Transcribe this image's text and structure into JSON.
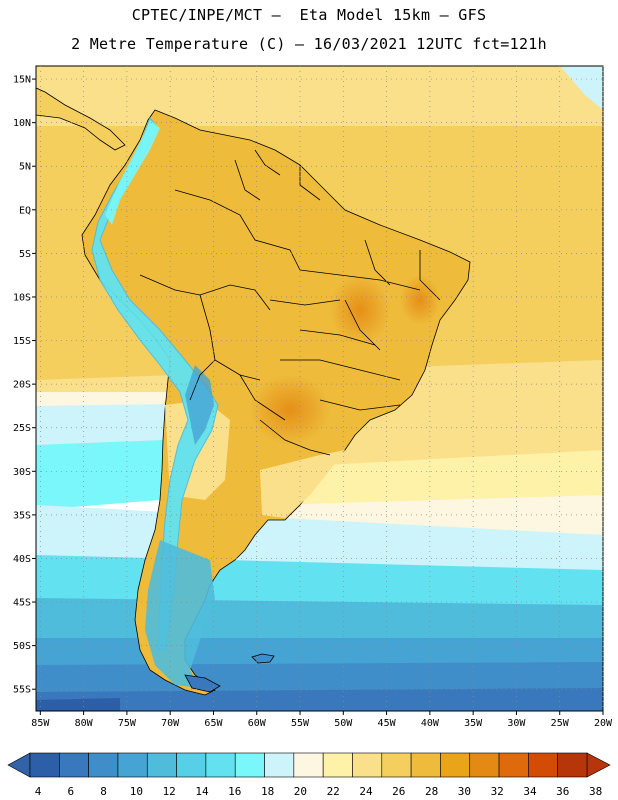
{
  "header": {
    "line1": "CPTEC/INPE/MCT –  Eta Model 15km – GFS",
    "line2": "2 Metre Temperature (C) – 16/03/2021 12UTC fct=121h"
  },
  "axes": {
    "lat_labels": [
      "15N",
      "10N",
      "5N",
      "EQ",
      "5S",
      "10S",
      "15S",
      "20S",
      "25S",
      "30S",
      "35S",
      "40S",
      "45S",
      "50S",
      "55S"
    ],
    "lat_values": [
      15,
      10,
      5,
      0,
      -5,
      -10,
      -15,
      -20,
      -25,
      -30,
      -35,
      -40,
      -45,
      -50,
      -55
    ],
    "lon_labels": [
      "85W",
      "80W",
      "75W",
      "70W",
      "65W",
      "60W",
      "55W",
      "50W",
      "45W",
      "40W",
      "35W",
      "30W",
      "25W",
      "20W"
    ],
    "lon_values": [
      -85,
      -80,
      -75,
      -70,
      -65,
      -60,
      -55,
      -50,
      -45,
      -40,
      -35,
      -30,
      -25,
      -20
    ],
    "lon_range": [
      -85.5,
      -20
    ],
    "lat_range": [
      -57.5,
      16.5
    ]
  },
  "colorbar": {
    "labels": [
      "4",
      "6",
      "8",
      "10",
      "12",
      "14",
      "16",
      "18",
      "20",
      "22",
      "24",
      "26",
      "28",
      "30",
      "32",
      "34",
      "36",
      "38"
    ],
    "colors": [
      "#2c5fa8",
      "#3a78bd",
      "#3f8ec9",
      "#45a4d4",
      "#4fbcdc",
      "#57cfe6",
      "#62e2f0",
      "#7af7fb",
      "#cdf4fb",
      "#fdf6e0",
      "#fdf2a8",
      "#fae08a",
      "#f4cf5e",
      "#eebb3a",
      "#eaa41a",
      "#e48a14",
      "#de6a0c",
      "#d24c06",
      "#b6360a"
    ],
    "min_arrow_color": "#3262a8",
    "max_arrow_color": "#b6360a"
  },
  "chart_data": {
    "type": "heatmap",
    "title": "2 Metre Temperature (C) – 16/03/2021 12UTC fct=121h",
    "variable": "2 Metre Temperature",
    "units": "C",
    "model": "Eta Model 15km – GFS",
    "source": "CPTEC/INPE/MCT",
    "lon_range": [
      -85.5,
      -20
    ],
    "lat_range": [
      -57.5,
      16.5
    ],
    "levels": [
      4,
      6,
      8,
      10,
      12,
      14,
      16,
      18,
      20,
      22,
      24,
      26,
      28,
      30,
      32,
      34,
      36,
      38
    ]
  }
}
